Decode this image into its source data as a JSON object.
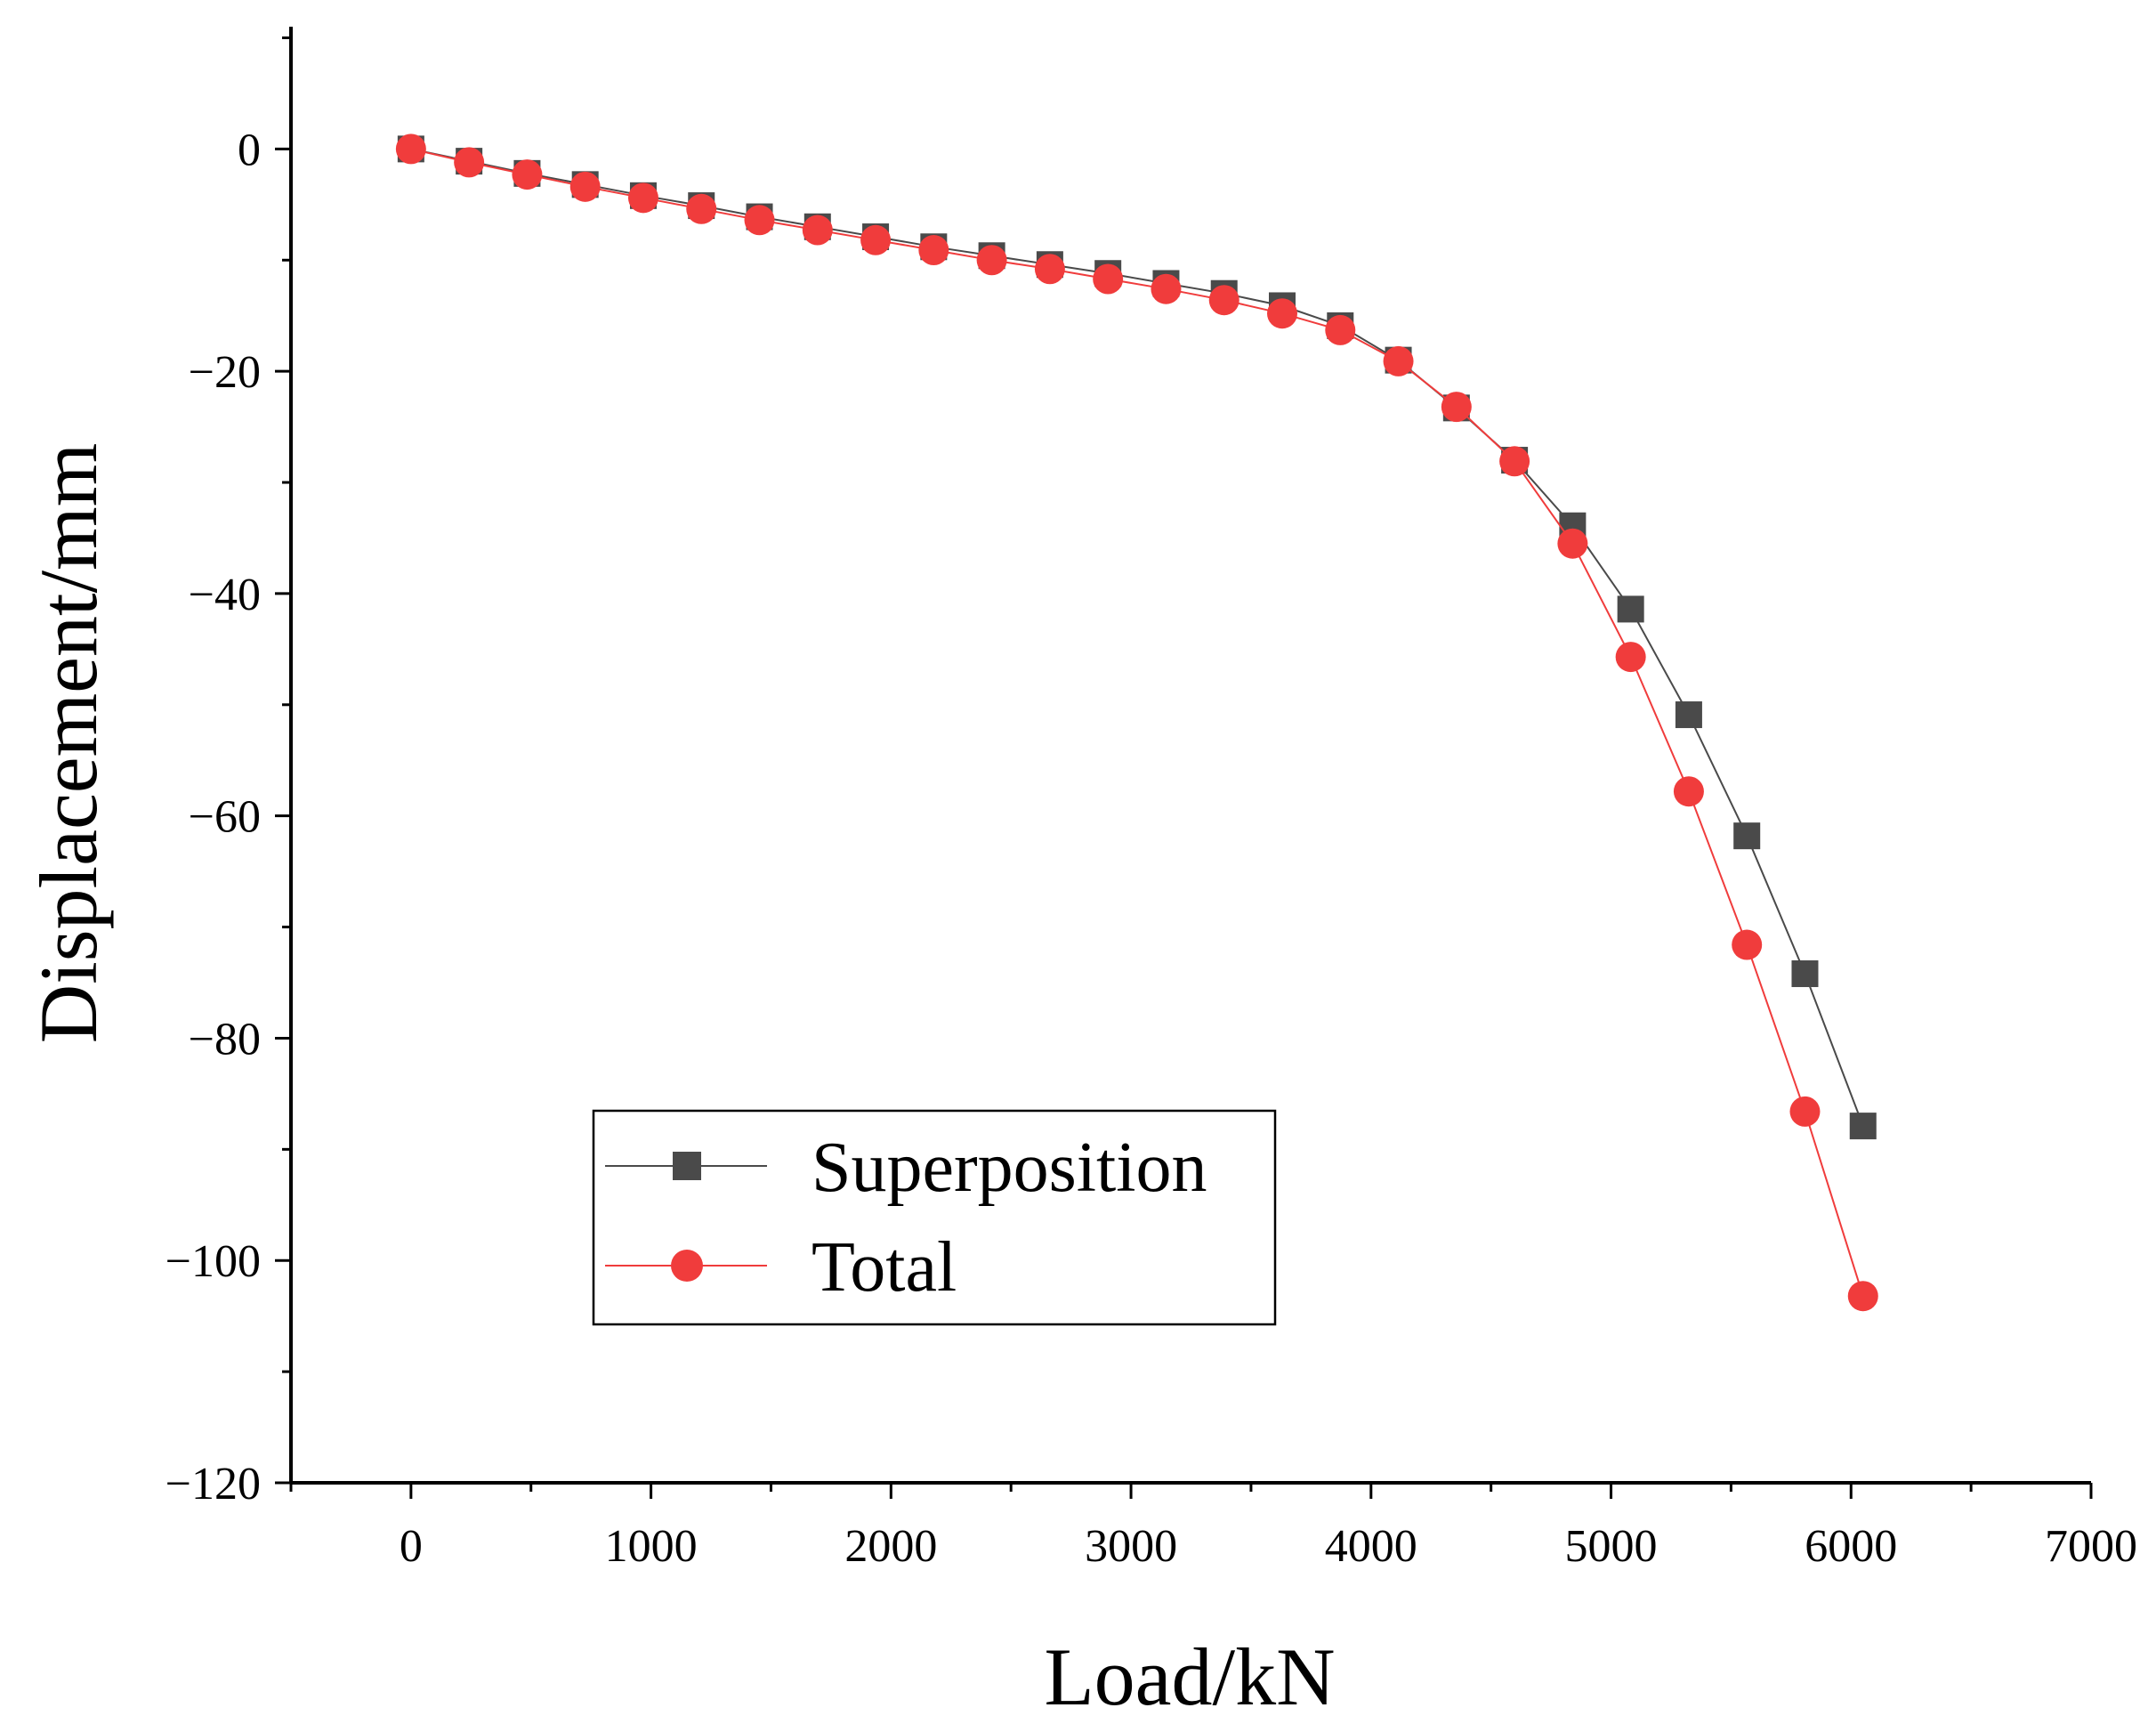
{
  "chart_data": {
    "type": "line",
    "title": "",
    "xlabel": "Load/kN",
    "ylabel": "Displacement/mm",
    "xlim": [
      -500,
      7000
    ],
    "ylim": [
      -120,
      11
    ],
    "xticks": [
      0,
      1000,
      2000,
      3000,
      4000,
      5000,
      6000,
      7000
    ],
    "yticks": [
      0,
      -20,
      -40,
      -60,
      -80,
      -100,
      -120
    ],
    "grid": false,
    "legend_position": "lower-middle",
    "x": [
      0,
      242,
      484,
      726,
      968,
      1210,
      1452,
      1694,
      1936,
      2178,
      2420,
      2662,
      2904,
      3146,
      3388,
      3630,
      3872,
      4114,
      4356,
      4598,
      4840,
      5082,
      5324,
      5566,
      5808,
      6050
    ],
    "series": [
      {
        "name": "Superposition",
        "color": "#4a4a4a",
        "marker": "square",
        "values": [
          0,
          -1.1,
          -2.2,
          -3.2,
          -4.2,
          -5.1,
          -6.1,
          -7.0,
          -7.9,
          -8.8,
          -9.6,
          -10.4,
          -11.2,
          -12.1,
          -13.0,
          -14.1,
          -15.9,
          -19.0,
          -23.3,
          -28.0,
          -33.9,
          -41.4,
          -50.9,
          -61.8,
          -74.2,
          -87.9
        ]
      },
      {
        "name": "Total",
        "color": "#f03c3c",
        "marker": "circle",
        "values": [
          0,
          -1.2,
          -2.3,
          -3.4,
          -4.4,
          -5.4,
          -6.4,
          -7.3,
          -8.2,
          -9.1,
          -10.0,
          -10.8,
          -11.7,
          -12.6,
          -13.6,
          -14.8,
          -16.3,
          -19.1,
          -23.2,
          -28.1,
          -35.5,
          -45.7,
          -57.8,
          -71.6,
          -86.6,
          -103.2
        ]
      }
    ]
  }
}
